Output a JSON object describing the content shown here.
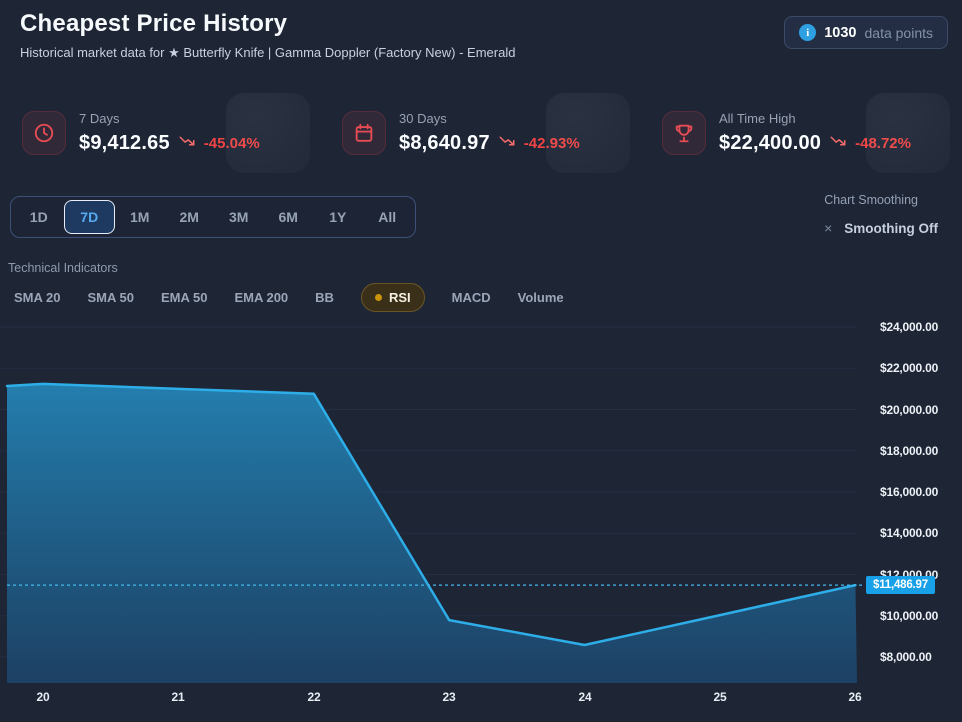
{
  "header": {
    "title": "Cheapest Price History",
    "subtitle": "Historical market data for ★ Butterfly Knife | Gamma Doppler (Factory New) - Emerald",
    "badge": {
      "count": "1030",
      "label": "data points",
      "icon": "info-icon"
    }
  },
  "stats": [
    {
      "icon": "clock-icon",
      "label": "7 Days",
      "value": "$9,412.65",
      "change": "-45.04%",
      "trend_icon": "trending-down-icon"
    },
    {
      "icon": "calendar-icon",
      "label": "30 Days",
      "value": "$8,640.97",
      "change": "-42.93%",
      "trend_icon": "trending-down-icon"
    },
    {
      "icon": "trophy-icon",
      "label": "All Time High",
      "value": "$22,400.00",
      "change": "-48.72%",
      "trend_icon": "trending-down-icon"
    }
  ],
  "time_ranges": {
    "options": [
      "1D",
      "7D",
      "1M",
      "2M",
      "3M",
      "6M",
      "1Y",
      "All"
    ],
    "active": "7D"
  },
  "smoothing": {
    "label": "Chart Smoothing",
    "value": "Smoothing Off",
    "clear_icon": "×",
    "clear_icon_name": "close-icon"
  },
  "indicators": {
    "label": "Technical Indicators",
    "options": [
      "SMA 20",
      "SMA 50",
      "EMA 50",
      "EMA 200",
      "BB",
      "RSI",
      "MACD",
      "Volume"
    ],
    "active": "RSI"
  },
  "chart_data": {
    "type": "area",
    "title": "Cheapest Price History (7D)",
    "x": [
      19.734,
      20,
      21,
      22,
      23,
      24,
      25,
      26
    ],
    "prices": [
      21140,
      21240,
      21000,
      20760,
      9790,
      8580,
      10030,
      11486.97
    ],
    "x_tick_days": [
      20,
      21,
      22,
      23,
      24,
      25,
      26
    ],
    "x_tick_labels": [
      "20",
      "21",
      "22",
      "23",
      "24",
      "25",
      "26"
    ],
    "y_ticks": [
      24000,
      22000,
      20000,
      18000,
      16000,
      14000,
      12000,
      10000,
      8000
    ],
    "y_tick_labels": [
      "$24,000.00",
      "$22,000.00",
      "$20,000.00",
      "$18,000.00",
      "$16,000.00",
      "$14,000.00",
      "$12,000.00",
      "$10,000.00",
      "$8,000.00"
    ],
    "ylim": [
      8000,
      24000
    ],
    "x_range": [
      19.734,
      26.012
    ],
    "current_price": 11486.97,
    "current_price_label": "$11,486.97",
    "grid": true,
    "legend": false
  },
  "colors": {
    "accent_blue": "#2eaee8",
    "dashed_blue": "#44b7ee",
    "tag_blue": "#18a0e8",
    "negative_red": "#ef4444",
    "icon_red": "#e74c54",
    "rsi_gold": "#c9940a",
    "active_range_text": "#57aaf0",
    "fill_top": "#2484b6",
    "fill_mid": "#1f5e88",
    "fill_bottom": "#1d4266",
    "background": "#1e2636"
  }
}
